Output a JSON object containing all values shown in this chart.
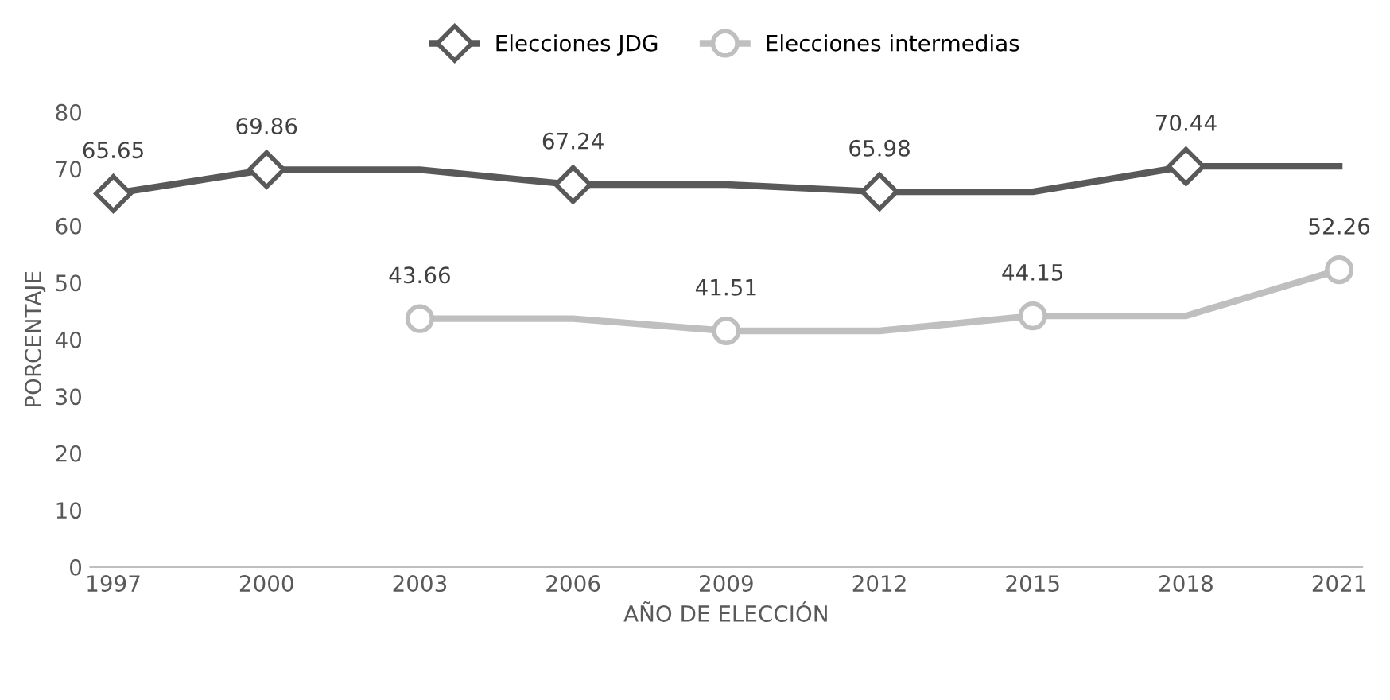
{
  "chart_data": {
    "type": "line",
    "xlabel": "AÑO DE ELECCIÓN",
    "ylabel": "PORCENTAJE",
    "categories": [
      "1997",
      "2000",
      "2003",
      "2006",
      "2009",
      "2012",
      "2015",
      "2018",
      "2021"
    ],
    "series": [
      {
        "name": "Elecciones JDG",
        "color": "#595959",
        "marker": "diamond",
        "values": [
          65.65,
          69.86,
          69.86,
          67.24,
          67.24,
          65.98,
          65.98,
          70.44,
          70.44
        ],
        "value_labels": [
          "65.65",
          "69.86",
          null,
          "67.24",
          null,
          "65.98",
          null,
          "70.44",
          null
        ]
      },
      {
        "name": "Elecciones intermedias",
        "color": "#bfbfbf",
        "marker": "circle",
        "values": [
          null,
          null,
          43.66,
          43.66,
          41.51,
          41.51,
          44.15,
          44.15,
          52.26
        ],
        "value_labels": [
          null,
          null,
          "43.66",
          null,
          "41.51",
          null,
          "44.15",
          null,
          "52.26"
        ]
      }
    ],
    "ylim": [
      0,
      80
    ],
    "yticks": [
      0,
      10,
      20,
      30,
      40,
      50,
      60,
      70,
      80
    ],
    "grid": false,
    "legend": "top"
  }
}
